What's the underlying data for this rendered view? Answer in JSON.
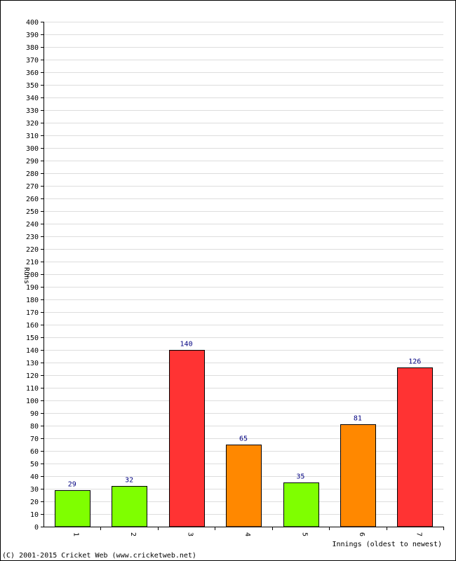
{
  "chart_data": {
    "type": "bar",
    "categories": [
      "1",
      "2",
      "3",
      "4",
      "5",
      "6",
      "7"
    ],
    "values": [
      29,
      32,
      140,
      65,
      35,
      81,
      126
    ],
    "bar_colors": [
      "#7fff00",
      "#7fff00",
      "#ff3333",
      "#ff8800",
      "#7fff00",
      "#ff8800",
      "#ff3333"
    ],
    "title": "",
    "xlabel": "Innings (oldest to newest)",
    "ylabel": "Runs",
    "ylim": [
      0,
      400
    ],
    "ytick_step": 10,
    "grid": true,
    "colors": {
      "grid": "#dddddd",
      "axis": "#000000",
      "bar_outline": "#000000",
      "data_label": "#000080"
    }
  },
  "footer": {
    "copyright": "(C) 2001-2015 Cricket Web (www.cricketweb.net)"
  }
}
